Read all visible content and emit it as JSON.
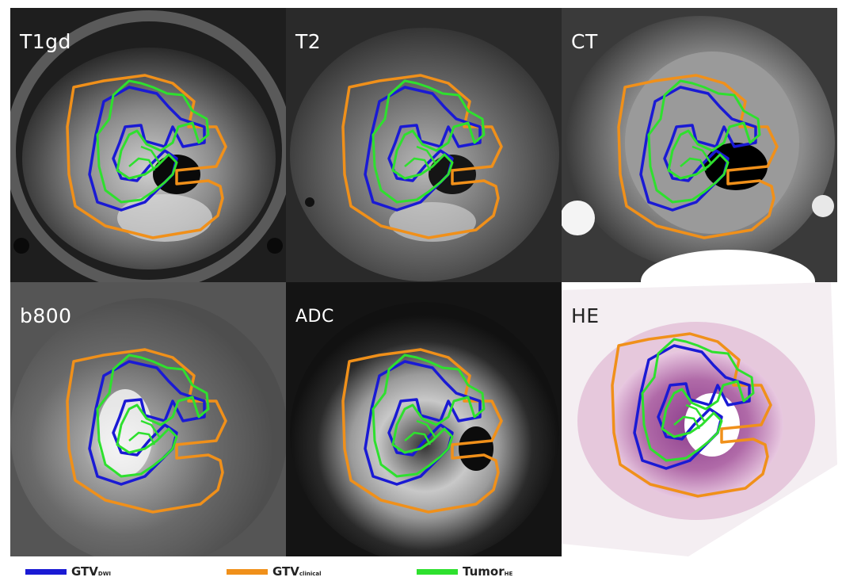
{
  "panels": [
    {
      "label": "T1gd"
    },
    {
      "label": "T2"
    },
    {
      "label": "CT"
    },
    {
      "label": "b800"
    },
    {
      "label": "ADC"
    },
    {
      "label": "HE"
    }
  ],
  "legend": [
    {
      "main": "GTV",
      "sub": "DWI",
      "color": "#1a1ad4"
    },
    {
      "main": "GTV",
      "sub": "clinical",
      "color": "#f0901a"
    },
    {
      "main": "Tumor",
      "sub": "HE",
      "color": "#2ee02e"
    }
  ],
  "colors": {
    "gtv_dwi": "#1a1ad4",
    "gtv_clinical": "#f0901a",
    "tumor_he": "#2ee02e"
  }
}
